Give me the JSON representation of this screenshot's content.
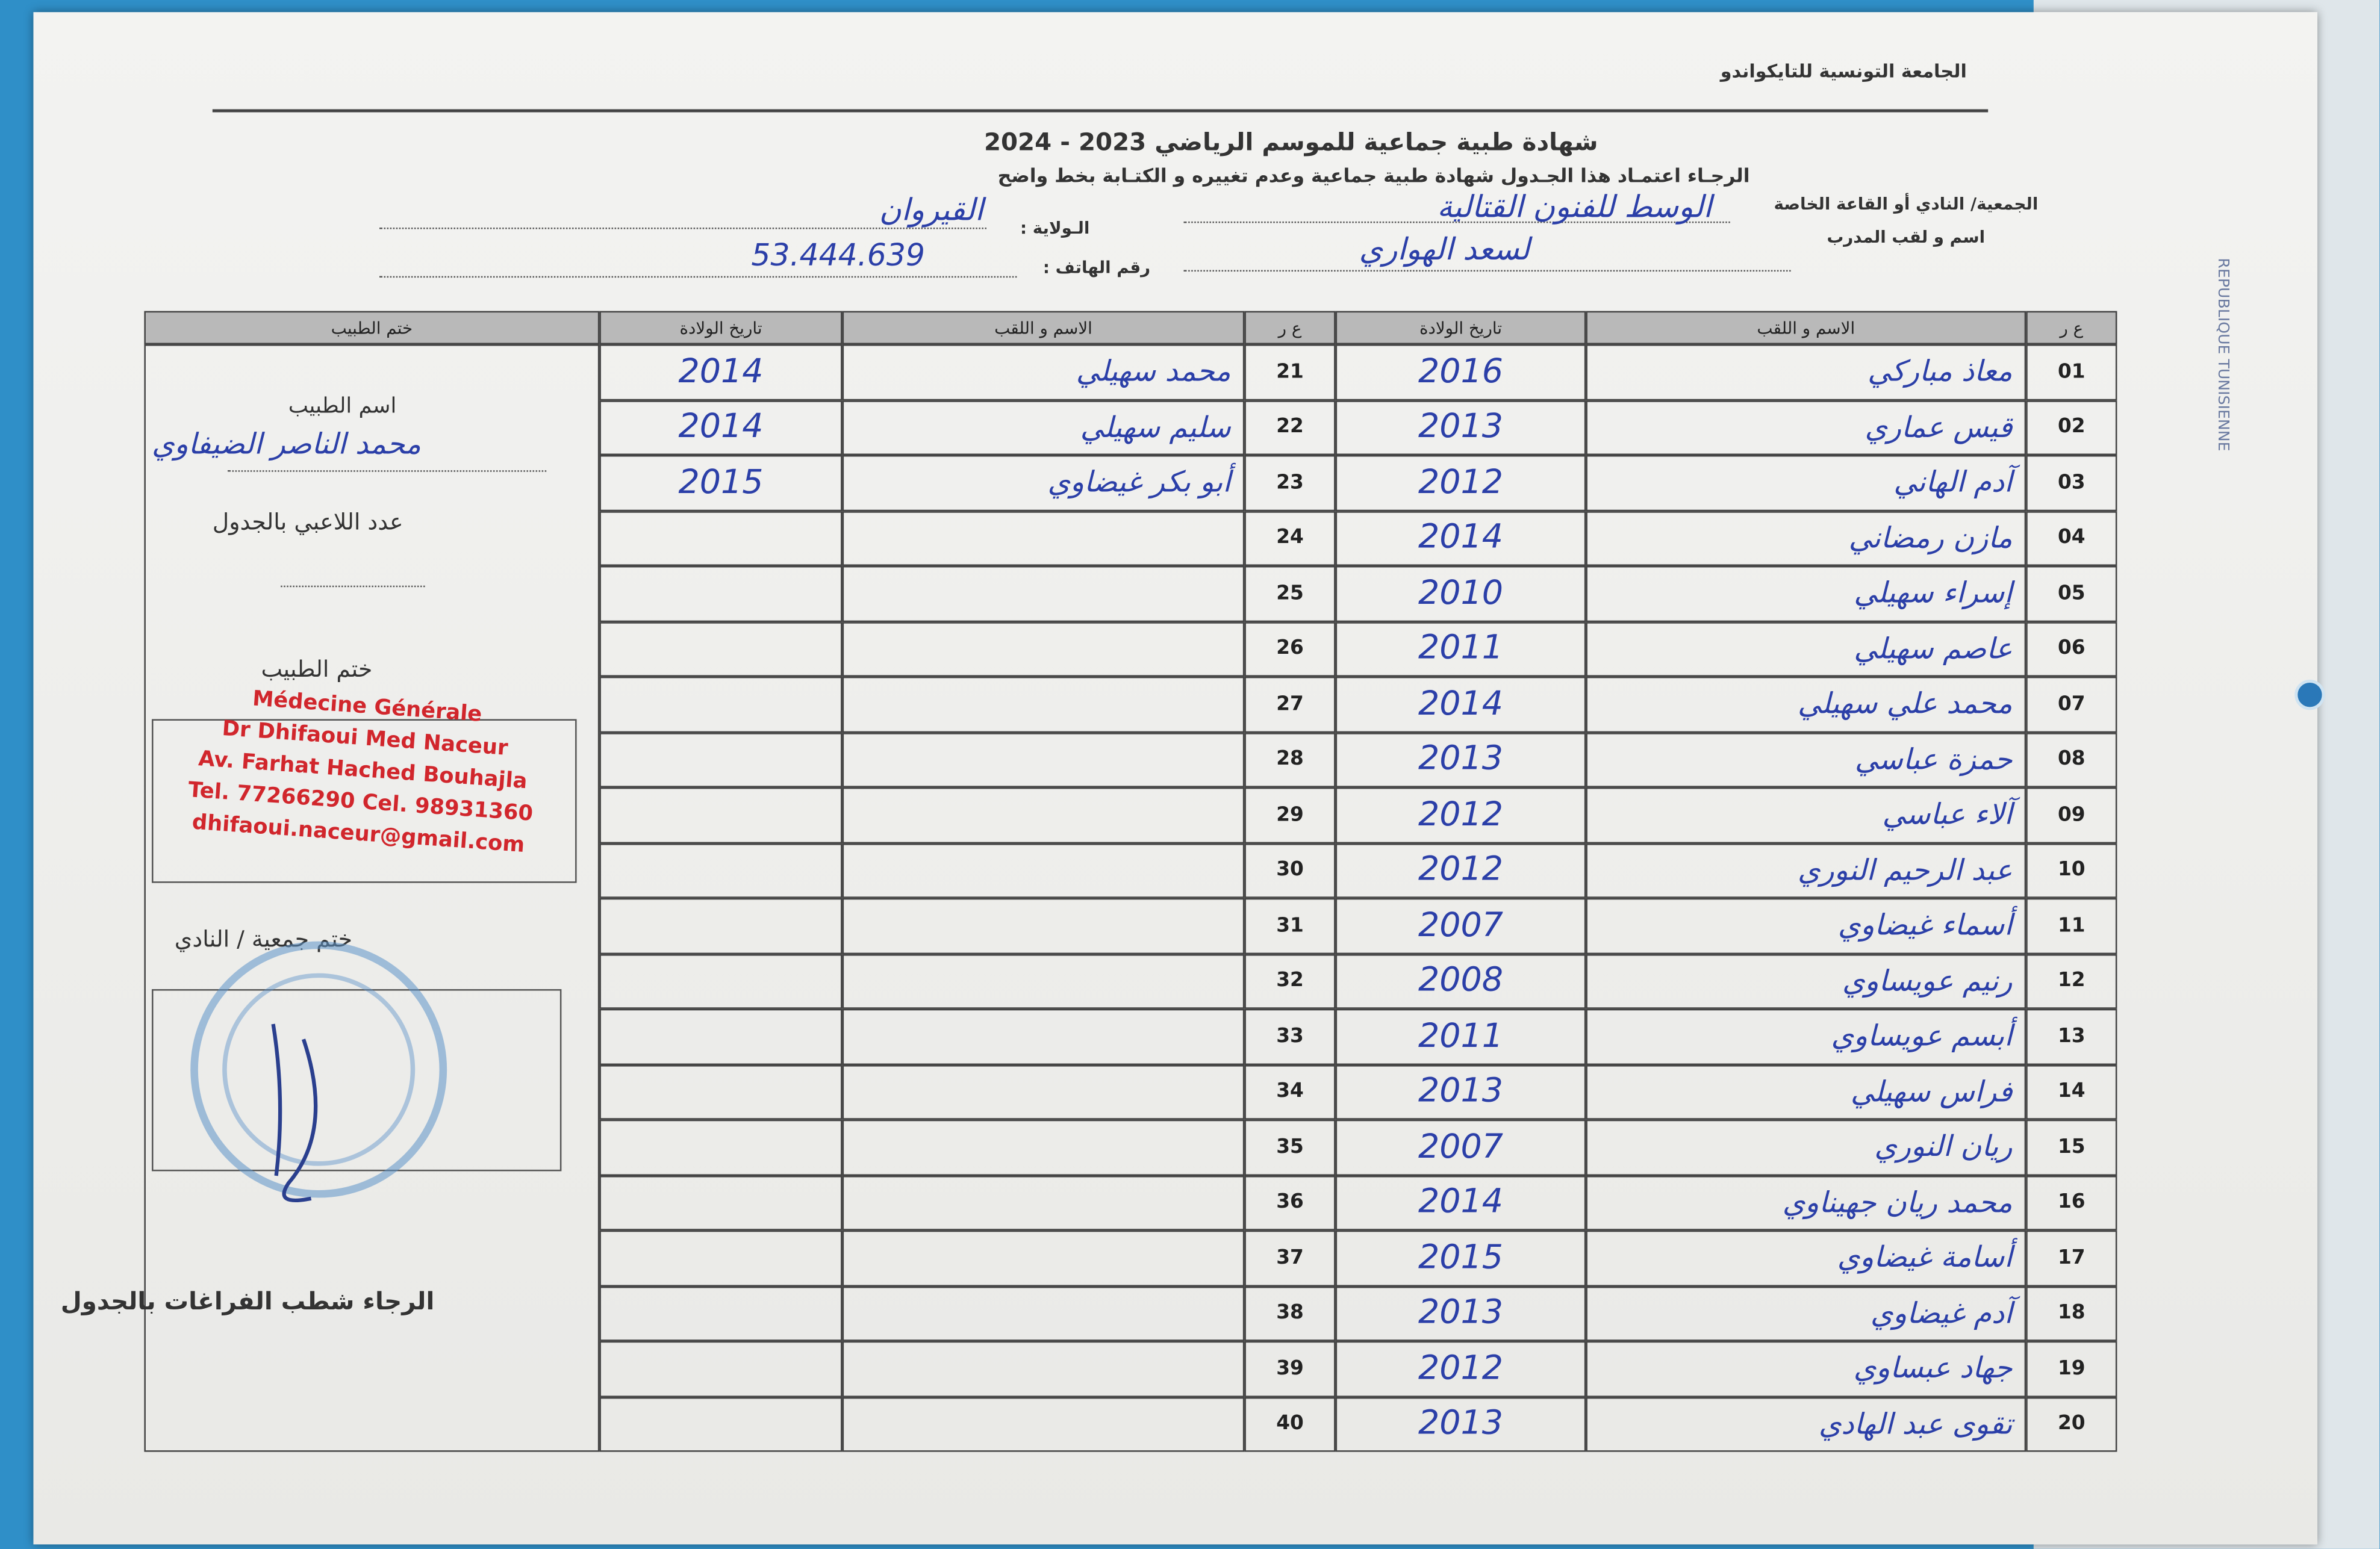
{
  "header": {
    "federation": "الجامعة التونسية للتايكواندو",
    "title": "شهادة طبية جماعية  للموسم الرياضي 2023 - 2024",
    "instruction": "الرجـاء اعتمـاد هذا الجـدول شهادة طبية جماعية وعدم تغييره و الكتـابة بخط واضح"
  },
  "fields": {
    "club_label": "الجمعية/ النادي أو القاعة الخاصة",
    "club_value": "الوسط للفنون القتالية",
    "state_label": "الـولاية :",
    "state_value": "القيروان",
    "coach_label": "اسم و لقب المدرب",
    "coach_value": "لسعد الهواري",
    "phone_label": "رقم الهاتف :",
    "phone_value": "53.444.639"
  },
  "table": {
    "headers": {
      "number": "ع ر",
      "name": "الاسم و اللقب",
      "birth": "تاريخ الولادة",
      "stamp": "ختم الطبيب"
    },
    "rows": [
      {
        "number": "01",
        "name": "معاذ مباركي",
        "birth": 2016
      },
      {
        "number": "02",
        "name": "قيس عماري",
        "birth": 2013
      },
      {
        "number": "03",
        "name": "آدم الهاني",
        "birth": 2012
      },
      {
        "number": "04",
        "name": "مازن رمضاني",
        "birth": 2014
      },
      {
        "number": "05",
        "name": "إسراء سهيلي",
        "birth": 2010
      },
      {
        "number": "06",
        "name": "عاصم سهيلي",
        "birth": 2011
      },
      {
        "number": "07",
        "name": "محمد علي سهيلي",
        "birth": 2014
      },
      {
        "number": "08",
        "name": "حمزة عباسي",
        "birth": 2013
      },
      {
        "number": "09",
        "name": "آلاء عباسي",
        "birth": 2012
      },
      {
        "number": "10",
        "name": "عبد الرحيم النوري",
        "birth": 2012
      },
      {
        "number": "11",
        "name": "أسماء غيضاوي",
        "birth": 2007
      },
      {
        "number": "12",
        "name": "رنيم عويساوي",
        "birth": 2008
      },
      {
        "number": "13",
        "name": "أبسم عويساوي",
        "birth": 2011
      },
      {
        "number": "14",
        "name": "فراس سهيلي",
        "birth": 2013
      },
      {
        "number": "15",
        "name": "ريان النوري",
        "birth": 2007
      },
      {
        "number": "16",
        "name": "محمد ريان جهيناوي",
        "birth": 2014
      },
      {
        "number": "17",
        "name": "أسامة غيضاوي",
        "birth": 2015
      },
      {
        "number": "18",
        "name": "آدم غيضاوي",
        "birth": 2013
      },
      {
        "number": "19",
        "name": "جهاد عبساوي",
        "birth": 2012
      },
      {
        "number": "20",
        "name": "تقوى عبد الهادي",
        "birth": 2013
      },
      {
        "number": "21",
        "name": "محمد سهيلي",
        "birth": 2014
      },
      {
        "number": "22",
        "name": "سليم سهيلي",
        "birth": 2014
      },
      {
        "number": "23",
        "name": "أبو بكر غيضاوي",
        "birth": 2015
      },
      {
        "number": "24"
      },
      {
        "number": "25"
      },
      {
        "number": "26"
      },
      {
        "number": "27"
      },
      {
        "number": "28"
      },
      {
        "number": "29"
      },
      {
        "number": "30"
      },
      {
        "number": "31"
      },
      {
        "number": "32"
      },
      {
        "number": "33"
      },
      {
        "number": "34"
      },
      {
        "number": "35"
      },
      {
        "number": "36"
      },
      {
        "number": "37"
      },
      {
        "number": "38"
      },
      {
        "number": "39"
      },
      {
        "number": "40"
      }
    ]
  },
  "doctor_panel": {
    "doctor_name_label": "اسم الطبيب",
    "doctor_name_value": "محمد الناصر الضيفاوي",
    "player_count_label": "عدد اللاعبي بالجدول",
    "doctor_stamp_label": "ختم الطبيب",
    "stamp_lines": [
      "Médecine Générale",
      "Dr Dhifaoui Med Naceur",
      "Av. Farhat Hached Bouhajla",
      "Tel. 77266290 Cel. 98931360",
      "dhifaoui.naceur@gmail.com"
    ],
    "club_stamp_label": "ختم جمعية / النادي",
    "footer_note": "الرجاء شطب الفراغات بالجدول"
  },
  "side_text": "REPUBLIQUE TUNISIENNE"
}
